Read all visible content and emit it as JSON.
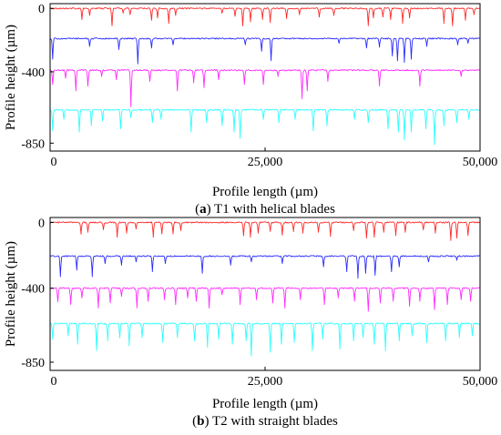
{
  "chart_data": [
    {
      "type": "line",
      "panel_letter": "a",
      "caption": "T1 with helical blades",
      "xlabel": "Profile length (µm)",
      "ylabel": "Profile height (µm)",
      "xlim": [
        0,
        50000
      ],
      "ylim": [
        -900,
        30
      ],
      "x_ticks": [
        0,
        25000,
        50000
      ],
      "x_tick_labels": [
        "0",
        "25,000",
        "50,000"
      ],
      "y_ticks": [
        0,
        -400,
        -850
      ],
      "y_tick_labels": [
        "0",
        "-400",
        "-850"
      ],
      "grid": false,
      "series": [
        {
          "color": "#ff2a2a",
          "baseline": 0,
          "valleys": [
            [
              3700,
              -70
            ],
            [
              4600,
              -45
            ],
            [
              7200,
              -110
            ],
            [
              8500,
              -30
            ],
            [
              9300,
              -40
            ],
            [
              11800,
              -75
            ],
            [
              12500,
              -60
            ],
            [
              13800,
              -95
            ],
            [
              14600,
              -45
            ],
            [
              20000,
              -30
            ],
            [
              21500,
              -50
            ],
            [
              22400,
              -110
            ],
            [
              23300,
              -85
            ],
            [
              24700,
              -70
            ],
            [
              25600,
              -90
            ],
            [
              27500,
              -65
            ],
            [
              29000,
              -40
            ],
            [
              31300,
              -55
            ],
            [
              33000,
              -45
            ],
            [
              37000,
              -110
            ],
            [
              37600,
              -60
            ],
            [
              38700,
              -55
            ],
            [
              39600,
              -70
            ],
            [
              41000,
              -95
            ],
            [
              41800,
              -60
            ],
            [
              45800,
              -95
            ],
            [
              46800,
              -110
            ],
            [
              48300,
              -75
            ],
            [
              49300,
              -40
            ]
          ]
        },
        {
          "color": "#2a2aff",
          "baseline": -190,
          "valleys": [
            [
              300,
              -320
            ],
            [
              4600,
              -240
            ],
            [
              8000,
              -260
            ],
            [
              10200,
              -350
            ],
            [
              11800,
              -250
            ],
            [
              14300,
              -230
            ],
            [
              22700,
              -230
            ],
            [
              24600,
              -270
            ],
            [
              25700,
              -330
            ],
            [
              33600,
              -220
            ],
            [
              36800,
              -250
            ],
            [
              38300,
              -245
            ],
            [
              39800,
              -300
            ],
            [
              40400,
              -330
            ],
            [
              41200,
              -340
            ],
            [
              42000,
              -320
            ],
            [
              43800,
              -240
            ],
            [
              47400,
              -230
            ],
            [
              48600,
              -220
            ]
          ]
        },
        {
          "color": "#ff2aff",
          "baseline": -390,
          "valleys": [
            [
              300,
              -480
            ],
            [
              1800,
              -440
            ],
            [
              3000,
              -520
            ],
            [
              4400,
              -490
            ],
            [
              6000,
              -430
            ],
            [
              7700,
              -450
            ],
            [
              9400,
              -620
            ],
            [
              11600,
              -460
            ],
            [
              14800,
              -520
            ],
            [
              16700,
              -470
            ],
            [
              17900,
              -500
            ],
            [
              19600,
              -450
            ],
            [
              22600,
              -480
            ],
            [
              24800,
              -480
            ],
            [
              26500,
              -430
            ],
            [
              29300,
              -570
            ],
            [
              29900,
              -520
            ],
            [
              32300,
              -460
            ],
            [
              38300,
              -490
            ],
            [
              43000,
              -490
            ],
            [
              47800,
              -430
            ]
          ]
        },
        {
          "color": "#2affff",
          "baseline": -640,
          "valleys": [
            [
              300,
              -770
            ],
            [
              1600,
              -700
            ],
            [
              3400,
              -780
            ],
            [
              4800,
              -740
            ],
            [
              6100,
              -710
            ],
            [
              8200,
              -760
            ],
            [
              9400,
              -690
            ],
            [
              11900,
              -720
            ],
            [
              12900,
              -700
            ],
            [
              16400,
              -780
            ],
            [
              18200,
              -720
            ],
            [
              20000,
              -740
            ],
            [
              21400,
              -780
            ],
            [
              22100,
              -820
            ],
            [
              24800,
              -700
            ],
            [
              26600,
              -720
            ],
            [
              28500,
              -700
            ],
            [
              30600,
              -770
            ],
            [
              32200,
              -740
            ],
            [
              35400,
              -700
            ],
            [
              37000,
              -720
            ],
            [
              39300,
              -760
            ],
            [
              40500,
              -780
            ],
            [
              41200,
              -830
            ],
            [
              42000,
              -780
            ],
            [
              43700,
              -760
            ],
            [
              44700,
              -860
            ],
            [
              45800,
              -740
            ],
            [
              47300,
              -720
            ],
            [
              48700,
              -700
            ]
          ]
        }
      ]
    },
    {
      "type": "line",
      "panel_letter": "b",
      "caption": "T2 with straight blades",
      "xlabel": "Profile length (µm)",
      "ylabel": "Profile height (µm)",
      "xlim": [
        0,
        50000
      ],
      "ylim": [
        -900,
        30
      ],
      "x_ticks": [
        0,
        25000,
        50000
      ],
      "x_tick_labels": [
        "0",
        "25,000",
        "50,000"
      ],
      "y_ticks": [
        0,
        -400,
        -850
      ],
      "y_tick_labels": [
        "0",
        "-400",
        "-850"
      ],
      "grid": false,
      "series": [
        {
          "color": "#ff2a2a",
          "baseline": 0,
          "valleys": [
            [
              3600,
              -70
            ],
            [
              4400,
              -60
            ],
            [
              6200,
              -45
            ],
            [
              7800,
              -90
            ],
            [
              8900,
              -65
            ],
            [
              10000,
              -40
            ],
            [
              12000,
              -90
            ],
            [
              13000,
              -70
            ],
            [
              14300,
              -70
            ],
            [
              15200,
              -50
            ],
            [
              22500,
              -80
            ],
            [
              23300,
              -90
            ],
            [
              24200,
              -65
            ],
            [
              25600,
              -55
            ],
            [
              27000,
              -75
            ],
            [
              28300,
              -55
            ],
            [
              29400,
              -65
            ],
            [
              31200,
              -60
            ],
            [
              32600,
              -85
            ],
            [
              35300,
              -50
            ],
            [
              36800,
              -95
            ],
            [
              37700,
              -90
            ],
            [
              38800,
              -60
            ],
            [
              40200,
              -80
            ],
            [
              41300,
              -60
            ],
            [
              43400,
              -45
            ],
            [
              44800,
              -65
            ],
            [
              46600,
              -110
            ],
            [
              47300,
              -95
            ],
            [
              48600,
              -80
            ]
          ]
        },
        {
          "color": "#2a2aff",
          "baseline": -205,
          "valleys": [
            [
              1200,
              -330
            ],
            [
              3100,
              -290
            ],
            [
              4900,
              -330
            ],
            [
              6400,
              -250
            ],
            [
              8300,
              -260
            ],
            [
              10000,
              -240
            ],
            [
              11900,
              -300
            ],
            [
              13400,
              -250
            ],
            [
              17700,
              -310
            ],
            [
              21000,
              -260
            ],
            [
              23400,
              -240
            ],
            [
              27000,
              -250
            ],
            [
              31800,
              -270
            ],
            [
              34500,
              -300
            ],
            [
              35800,
              -340
            ],
            [
              36700,
              -310
            ],
            [
              37800,
              -320
            ],
            [
              39700,
              -300
            ],
            [
              40600,
              -270
            ],
            [
              44000,
              -240
            ],
            [
              47300,
              -230
            ]
          ]
        },
        {
          "color": "#ff2aff",
          "baseline": -400,
          "valleys": [
            [
              900,
              -480
            ],
            [
              2400,
              -500
            ],
            [
              3700,
              -460
            ],
            [
              5600,
              -520
            ],
            [
              7000,
              -490
            ],
            [
              8300,
              -450
            ],
            [
              10100,
              -520
            ],
            [
              11400,
              -480
            ],
            [
              13300,
              -470
            ],
            [
              14600,
              -500
            ],
            [
              16000,
              -460
            ],
            [
              17000,
              -480
            ],
            [
              18500,
              -520
            ],
            [
              20000,
              -440
            ],
            [
              22100,
              -500
            ],
            [
              24000,
              -470
            ],
            [
              25900,
              -490
            ],
            [
              27300,
              -520
            ],
            [
              29100,
              -470
            ],
            [
              31900,
              -500
            ],
            [
              33500,
              -460
            ],
            [
              35400,
              -480
            ],
            [
              37000,
              -540
            ],
            [
              38400,
              -490
            ],
            [
              39900,
              -480
            ],
            [
              41800,
              -510
            ],
            [
              43000,
              -480
            ],
            [
              44700,
              -530
            ],
            [
              46200,
              -500
            ],
            [
              47800,
              -470
            ],
            [
              48900,
              -480
            ]
          ]
        },
        {
          "color": "#2affff",
          "baseline": -615,
          "valleys": [
            [
              300,
              -710
            ],
            [
              2100,
              -690
            ],
            [
              3200,
              -740
            ],
            [
              5400,
              -780
            ],
            [
              6700,
              -720
            ],
            [
              8100,
              -700
            ],
            [
              9200,
              -750
            ],
            [
              10700,
              -700
            ],
            [
              13100,
              -730
            ],
            [
              14800,
              -700
            ],
            [
              16800,
              -720
            ],
            [
              18300,
              -760
            ],
            [
              19600,
              -710
            ],
            [
              21200,
              -740
            ],
            [
              22800,
              -720
            ],
            [
              23400,
              -810
            ],
            [
              25600,
              -790
            ],
            [
              26900,
              -740
            ],
            [
              28400,
              -730
            ],
            [
              30500,
              -780
            ],
            [
              31700,
              -710
            ],
            [
              33700,
              -770
            ],
            [
              35300,
              -720
            ],
            [
              36400,
              -700
            ],
            [
              37700,
              -740
            ],
            [
              39000,
              -780
            ],
            [
              40600,
              -720
            ],
            [
              42100,
              -690
            ],
            [
              43800,
              -730
            ],
            [
              46000,
              -720
            ],
            [
              47600,
              -700
            ],
            [
              49100,
              -690
            ]
          ]
        }
      ]
    }
  ]
}
